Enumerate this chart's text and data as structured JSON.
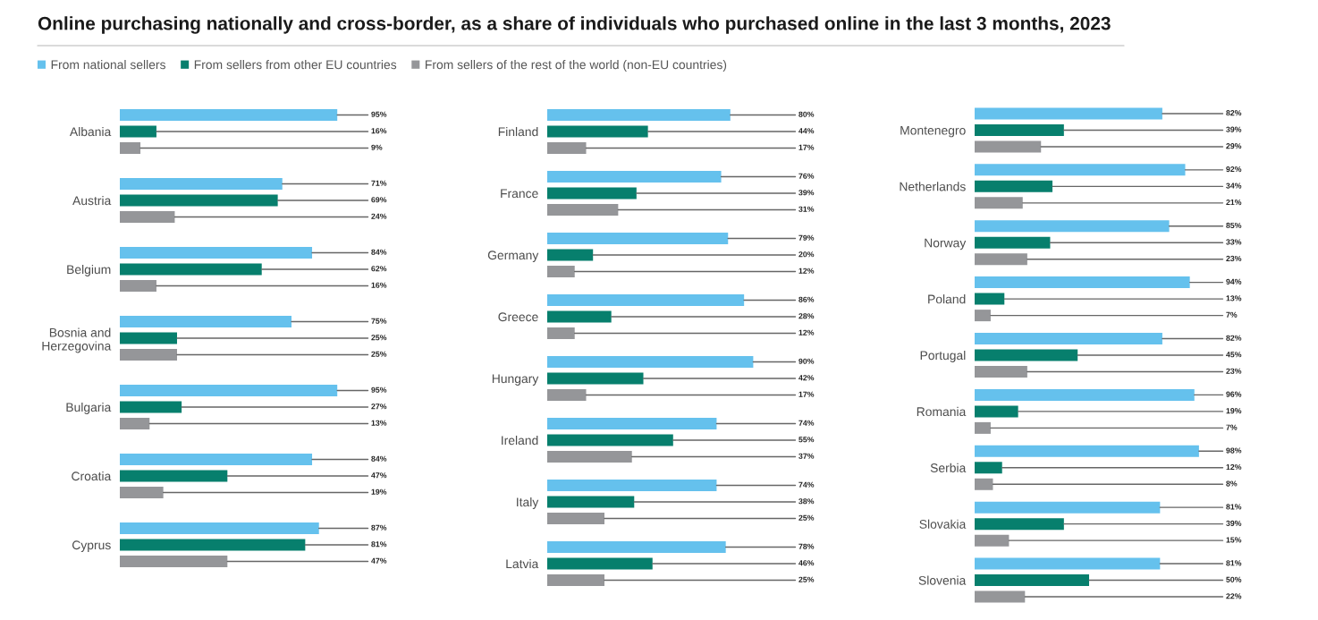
{
  "chart_data": [
    {
      "type": "bar",
      "orientation": "horizontal",
      "title": "Online purchasing nationally and cross-border, as a share of individuals who purchased online in the last 3 months, 2023",
      "categories": [
        "Albania",
        "Austria",
        "Belgium",
        "Bosnia and\nHerzegovina",
        "Bulgaria",
        "Croatia",
        "Cyprus"
      ],
      "series": [
        {
          "color": "#65c1ed",
          "values": [
            95,
            71,
            84,
            75,
            95,
            84,
            87
          ],
          "value_labels": [
            "95%",
            "71%",
            "84%",
            "75%",
            "95%",
            "84%",
            "87%"
          ]
        },
        {
          "color": "#077f6d",
          "values": [
            16,
            69,
            62,
            25,
            27,
            47,
            81
          ],
          "value_labels": [
            "16%",
            "69%",
            "62%",
            "25%",
            "27%",
            "47%",
            "81%"
          ]
        },
        {
          "color": "#959699",
          "values": [
            9,
            24,
            16,
            25,
            13,
            19,
            47
          ],
          "value_labels": [
            "9%",
            "24%",
            "16%",
            "25%",
            "13%",
            "19%",
            "47%"
          ]
        }
      ]
    },
    {
      "type": "bar",
      "orientation": "horizontal",
      "legend": "top left",
      "categories": [
        "Finland",
        "France",
        "Germany",
        "Greece",
        "Hungary",
        "Ireland",
        "Italy",
        "Latvia"
      ],
      "series": [
        {
          "name": "From national sellers",
          "color": "#65c1ed",
          "values": [
            80,
            76,
            79,
            86,
            90,
            74,
            74,
            78
          ],
          "value_labels": [
            "80%",
            "76%",
            "79%",
            "86%",
            "90%",
            "74%",
            "74%",
            "78%"
          ]
        },
        {
          "name": "From sellers from other EU countries",
          "color": "#077f6d",
          "values": [
            44,
            39,
            20,
            28,
            42,
            55,
            38,
            46
          ],
          "value_labels": [
            "44%",
            "39%",
            "20%",
            "28%",
            "42%",
            "55%",
            "38%",
            "46%"
          ]
        },
        {
          "name": "From sellers of the rest of the world (non-EU countries)",
          "color": "#959699",
          "values": [
            17,
            31,
            12,
            12,
            17,
            37,
            25,
            25
          ],
          "value_labels": [
            "17%",
            "31%",
            "12%",
            "12%",
            "17%",
            "37%",
            "25%",
            "25%"
          ]
        }
      ]
    },
    {
      "type": "bar",
      "orientation": "horizontal",
      "categories": [
        "Montenegro",
        "Netherlands",
        "Norway",
        "Poland",
        "Portugal",
        "Romania",
        "Serbia",
        "Slovakia",
        "Slovenia"
      ],
      "series": [
        {
          "color": "#65c1ed",
          "values": [
            82,
            92,
            85,
            94,
            82,
            96,
            98,
            81,
            81
          ],
          "value_labels": [
            "82%",
            "92%",
            "85%",
            "94%",
            "82%",
            "96%",
            "98%",
            "81%",
            "81%"
          ]
        },
        {
          "color": "#077f6d",
          "values": [
            39,
            34,
            33,
            13,
            45,
            19,
            12,
            39,
            50
          ],
          "value_labels": [
            "39%",
            "34%",
            "33%",
            "13%",
            "45%",
            "19%",
            "12%",
            "39%",
            "50%"
          ]
        },
        {
          "color": "#959699",
          "values": [
            29,
            21,
            23,
            7,
            23,
            7,
            8,
            15,
            22
          ],
          "value_labels": [
            "29%",
            "21%",
            "23%",
            "7%",
            "23%",
            "7%",
            "8%",
            "15%",
            "22%"
          ]
        }
      ]
    }
  ]
}
